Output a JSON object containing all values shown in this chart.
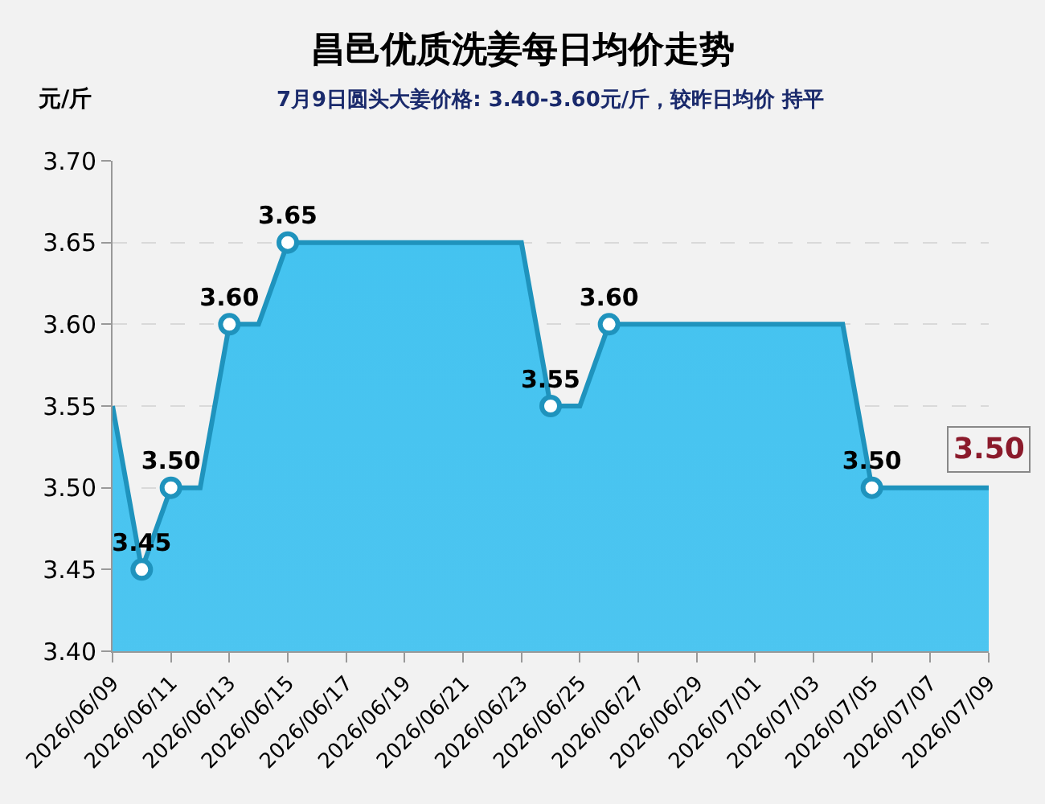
{
  "chart_data": {
    "type": "area",
    "title": "昌邑优质洗姜每日均价走势",
    "subtitle": "7月9日圆头大姜价格: 3.40-3.60元/斤，较昨日均价 持平",
    "ylabel": "元/斤",
    "x": [
      "2026-06-09",
      "2026-06-10",
      "2026-06-11",
      "2026-06-12",
      "2026-06-13",
      "2026-06-14",
      "2026-06-15",
      "2026-06-16",
      "2026-06-17",
      "2026-06-18",
      "2026-06-19",
      "2026-06-20",
      "2026-06-21",
      "2026-06-22",
      "2026-06-23",
      "2026-06-24",
      "2026-06-25",
      "2026-06-26",
      "2026-06-27",
      "2026-06-28",
      "2026-06-29",
      "2026-06-30",
      "2026-07-01",
      "2026-07-02",
      "2026-07-03",
      "2026-07-04",
      "2026-07-05",
      "2026-07-06",
      "2026-07-07",
      "2026-07-08",
      "2026-07-09"
    ],
    "series": [
      {
        "color": "#1f93bd",
        "values": [
          3.55,
          3.45,
          3.5,
          3.5,
          3.6,
          3.6,
          3.65,
          3.65,
          3.65,
          3.65,
          3.65,
          3.65,
          3.65,
          3.65,
          3.65,
          3.55,
          3.55,
          3.6,
          3.6,
          3.6,
          3.6,
          3.6,
          3.6,
          3.6,
          3.6,
          3.6,
          3.5,
          3.5,
          3.5,
          3.5,
          3.5
        ],
        "value_labels": [
          null,
          "3.45",
          "3.50",
          null,
          "3.60",
          null,
          "3.65",
          null,
          null,
          null,
          null,
          null,
          null,
          null,
          null,
          "3.55",
          null,
          "3.60",
          null,
          null,
          null,
          null,
          null,
          null,
          null,
          null,
          "3.50",
          null,
          null,
          null,
          null
        ]
      }
    ],
    "annotations": [
      {
        "text": "3.50",
        "x": "2026-07-09",
        "y": 3.5
      }
    ],
    "xlim": [
      "2026-06-09",
      "2026-07-09"
    ],
    "xticks": [
      {
        "value": "2026-06-09",
        "label": "2026/06/09"
      },
      {
        "value": "2026-06-11",
        "label": "2026/06/11"
      },
      {
        "value": "2026-06-13",
        "label": "2026/06/13"
      },
      {
        "value": "2026-06-15",
        "label": "2026/06/15"
      },
      {
        "value": "2026-06-17",
        "label": "2026/06/17"
      },
      {
        "value": "2026-06-19",
        "label": "2026/06/19"
      },
      {
        "value": "2026-06-21",
        "label": "2026/06/21"
      },
      {
        "value": "2026-06-23",
        "label": "2026/06/23"
      },
      {
        "value": "2026-06-25",
        "label": "2026/06/25"
      },
      {
        "value": "2026-06-27",
        "label": "2026/06/27"
      },
      {
        "value": "2026-06-29",
        "label": "2026/06/29"
      },
      {
        "value": "2026-07-01",
        "label": "2026/07/01"
      },
      {
        "value": "2026-07-03",
        "label": "2026/07/03"
      },
      {
        "value": "2026-07-05",
        "label": "2026/07/05"
      },
      {
        "value": "2026-07-07",
        "label": "2026/07/07"
      },
      {
        "value": "2026-07-09",
        "label": "2026/07/09"
      }
    ],
    "ylim": [
      3.4,
      3.7
    ],
    "yticks": [
      {
        "value": 3.4,
        "label": "3.40"
      },
      {
        "value": 3.45,
        "label": "3.45"
      },
      {
        "value": 3.5,
        "label": "3.50"
      },
      {
        "value": 3.55,
        "label": "3.55"
      },
      {
        "value": 3.6,
        "label": "3.60"
      },
      {
        "value": 3.65,
        "label": "3.65"
      },
      {
        "value": 3.7,
        "label": "3.70"
      }
    ],
    "grid": "y",
    "line_style": "solid"
  }
}
